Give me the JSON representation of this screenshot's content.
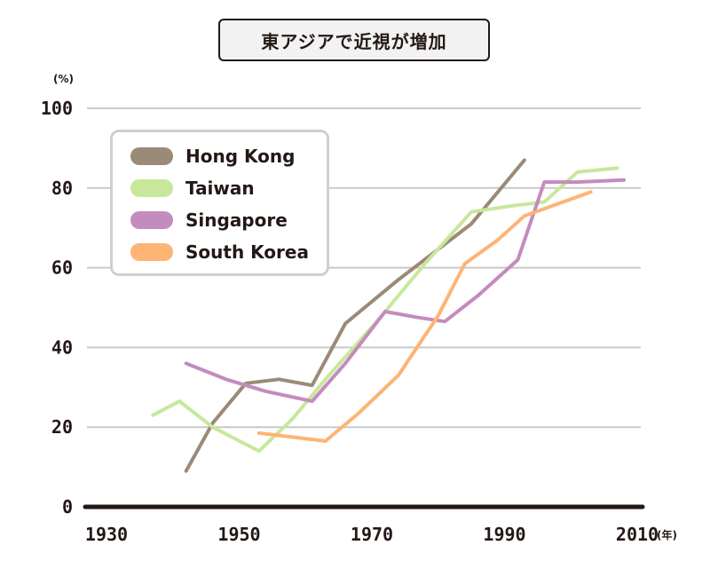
{
  "chart_data": {
    "type": "line",
    "title": "東アジアで近視が増加",
    "ylabel": "(%)",
    "xlabel": "(年)",
    "xlim": [
      1930,
      2010
    ],
    "ylim": [
      0,
      100
    ],
    "x_ticks": [
      "1930",
      "1950",
      "1970",
      "1990",
      "2010"
    ],
    "y_ticks": [
      "0",
      "20",
      "40",
      "60",
      "80",
      "100"
    ],
    "grid": true,
    "legend_position": "top-left",
    "series": [
      {
        "name": "Hong Kong",
        "color": "#9b8a78",
        "points": [
          [
            1942,
            9
          ],
          [
            1946,
            21
          ],
          [
            1951,
            31
          ],
          [
            1956,
            32
          ],
          [
            1961,
            30.5
          ],
          [
            1966,
            46
          ],
          [
            1974,
            57
          ],
          [
            1985,
            71
          ],
          [
            1993,
            87
          ]
        ]
      },
      {
        "name": "Taiwan",
        "color": "#c7e89b",
        "points": [
          [
            1937,
            23
          ],
          [
            1941,
            26.5
          ],
          [
            1946,
            20
          ],
          [
            1953,
            14
          ],
          [
            1958,
            22
          ],
          [
            1963,
            32
          ],
          [
            1971,
            47
          ],
          [
            1978,
            61
          ],
          [
            1985,
            74
          ],
          [
            1991,
            75.5
          ],
          [
            1996,
            76.5
          ],
          [
            2001,
            84
          ],
          [
            2007,
            85
          ]
        ]
      },
      {
        "name": "Singapore",
        "color": "#c48bbe",
        "points": [
          [
            1942,
            36
          ],
          [
            1948,
            32
          ],
          [
            1954,
            29
          ],
          [
            1961,
            26.5
          ],
          [
            1966,
            36
          ],
          [
            1972,
            49
          ],
          [
            1977,
            47.5
          ],
          [
            1981,
            46.5
          ],
          [
            1986,
            53
          ],
          [
            1992,
            62
          ],
          [
            1996,
            81.5
          ],
          [
            2001,
            81.5
          ],
          [
            2008,
            82
          ]
        ]
      },
      {
        "name": "South Korea",
        "color": "#fdb474",
        "points": [
          [
            1953,
            18.5
          ],
          [
            1958,
            17.5
          ],
          [
            1963,
            16.5
          ],
          [
            1968,
            23.5
          ],
          [
            1974,
            33
          ],
          [
            1980,
            48
          ],
          [
            1984,
            61
          ],
          [
            1989,
            67
          ],
          [
            1993,
            73
          ],
          [
            1998,
            76
          ],
          [
            2003,
            79
          ]
        ]
      }
    ]
  }
}
